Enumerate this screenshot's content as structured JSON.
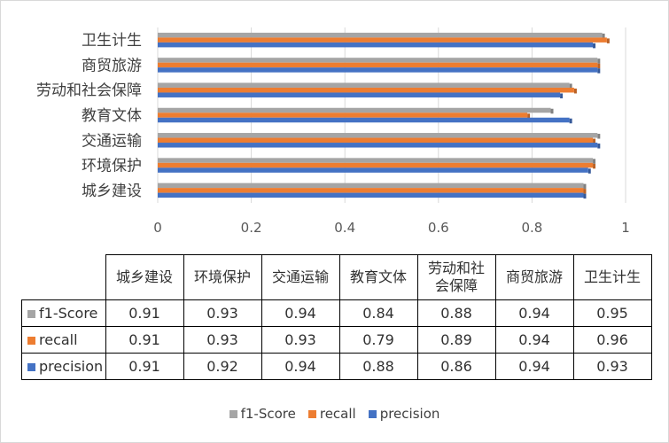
{
  "chart_data": {
    "type": "bar",
    "orientation": "horizontal",
    "categories": [
      "城乡建设",
      "环境保护",
      "交通运输",
      "教育文体",
      "劳动和社会保障",
      "商贸旅游",
      "卫生计生"
    ],
    "series": [
      {
        "name": "f1-Score",
        "color": "#a5a5a5",
        "values": [
          0.91,
          0.93,
          0.94,
          0.84,
          0.88,
          0.94,
          0.95
        ]
      },
      {
        "name": "recall",
        "color": "#ed7d31",
        "values": [
          0.91,
          0.93,
          0.93,
          0.79,
          0.89,
          0.94,
          0.96
        ]
      },
      {
        "name": "precision",
        "color": "#4472c4",
        "values": [
          0.91,
          0.92,
          0.94,
          0.88,
          0.86,
          0.94,
          0.93
        ]
      }
    ],
    "xlim": [
      0,
      1
    ],
    "x_ticks": [
      "0",
      "0.2",
      "0.4",
      "0.6",
      "0.8",
      "1"
    ],
    "grid": true,
    "legend_position": "bottom",
    "table_header_labels": [
      "城乡建设",
      "环境保护",
      "交通运输",
      "教育文体",
      "劳动和社\n会保障",
      "商贸旅游",
      "卫生计生"
    ],
    "data_table": [
      [
        "0.91",
        "0.93",
        "0.94",
        "0.84",
        "0.88",
        "0.94",
        "0.95"
      ],
      [
        "0.91",
        "0.93",
        "0.93",
        "0.79",
        "0.89",
        "0.94",
        "0.96"
      ],
      [
        "0.91",
        "0.92",
        "0.94",
        "0.88",
        "0.86",
        "0.94",
        "0.93"
      ]
    ]
  }
}
